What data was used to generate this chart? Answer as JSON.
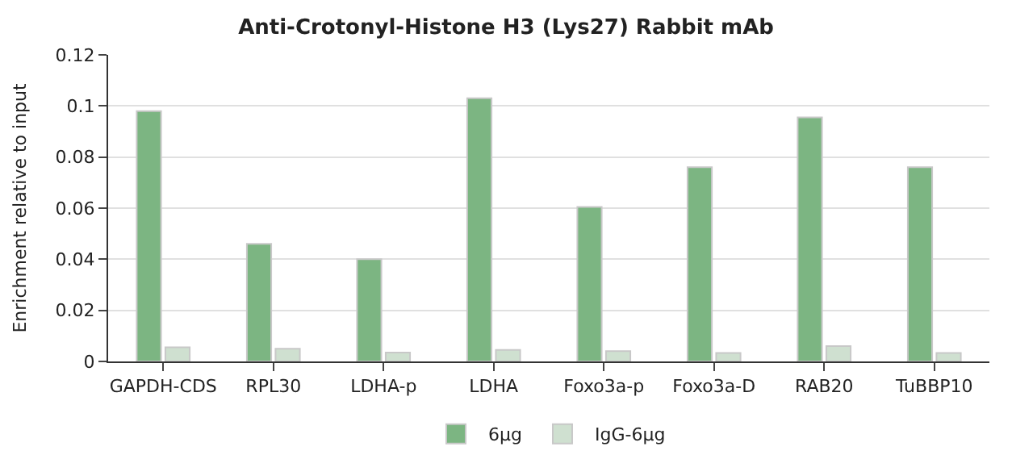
{
  "chart_data": {
    "type": "bar",
    "title": "Anti-Crotonyl-Histone H3 (Lys27) Rabbit mAb",
    "ylabel": "Enrichment relative to input",
    "categories": [
      "GAPDH-CDS",
      "RPL30",
      "LDHA-p",
      "LDHA",
      "Foxo3a-p",
      "Foxo3a-D",
      "RAB20",
      "TuBBP10"
    ],
    "series": [
      {
        "name": "6μg",
        "color": "#7cb582",
        "values": [
          0.098,
          0.046,
          0.04,
          0.103,
          0.0605,
          0.076,
          0.0955,
          0.076
        ]
      },
      {
        "name": "IgG-6μg",
        "color": "#cfe0d0",
        "values": [
          0.0055,
          0.005,
          0.0035,
          0.0045,
          0.004,
          0.0033,
          0.006,
          0.0033
        ]
      }
    ],
    "ylim": [
      0,
      0.12
    ],
    "yticks": [
      0,
      0.02,
      0.04,
      0.06,
      0.08,
      0.1,
      0.12
    ],
    "grid": "y",
    "legend": "bottom"
  }
}
